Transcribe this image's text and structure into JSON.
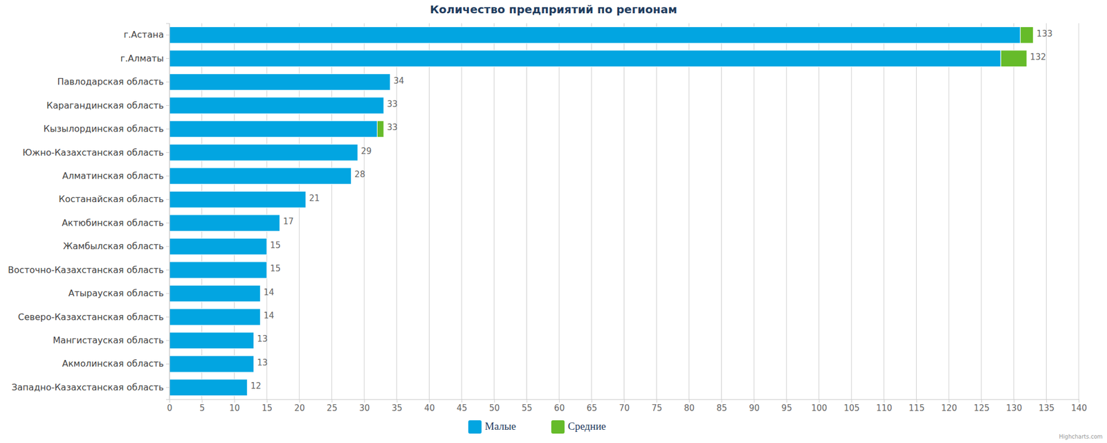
{
  "chart_data": {
    "type": "bar",
    "orientation": "horizontal",
    "stacked": true,
    "title": "Количество предприятий по регионам",
    "categories": [
      "г.Астана",
      "г.Алматы",
      "Павлодарская область",
      "Карагандинская область",
      "Кызылординская область",
      "Южно-Казахстанская область",
      "Алматинская область",
      "Костанайская область",
      "Актюбинская область",
      "Жамбылская область",
      "Восточно-Казахстанская область",
      "Атырауская область",
      "Северо-Казахстанская область",
      "Мангистауская область",
      "Акмолинская область",
      "Западно-Казахстанская область"
    ],
    "series": [
      {
        "name": "Малые",
        "color": "#02a5e1",
        "values": [
          131,
          128,
          34,
          33,
          32,
          29,
          28,
          21,
          17,
          15,
          15,
          14,
          14,
          13,
          13,
          12
        ]
      },
      {
        "name": "Средние",
        "color": "#66bb2a",
        "values": [
          2,
          4,
          0,
          0,
          1,
          0,
          0,
          0,
          0,
          0,
          0,
          0,
          0,
          0,
          0,
          0
        ]
      }
    ],
    "totals": [
      133,
      132,
      34,
      33,
      33,
      29,
      28,
      21,
      17,
      15,
      15,
      14,
      14,
      13,
      13,
      12
    ],
    "xlim": [
      0,
      140
    ],
    "xticks": [
      0,
      5,
      10,
      15,
      20,
      25,
      30,
      35,
      40,
      45,
      50,
      55,
      60,
      65,
      70,
      75,
      80,
      85,
      90,
      95,
      100,
      105,
      110,
      115,
      120,
      125,
      130,
      135,
      140
    ],
    "grid": true,
    "legend": "bottom",
    "credits": "Highcharts.com"
  }
}
